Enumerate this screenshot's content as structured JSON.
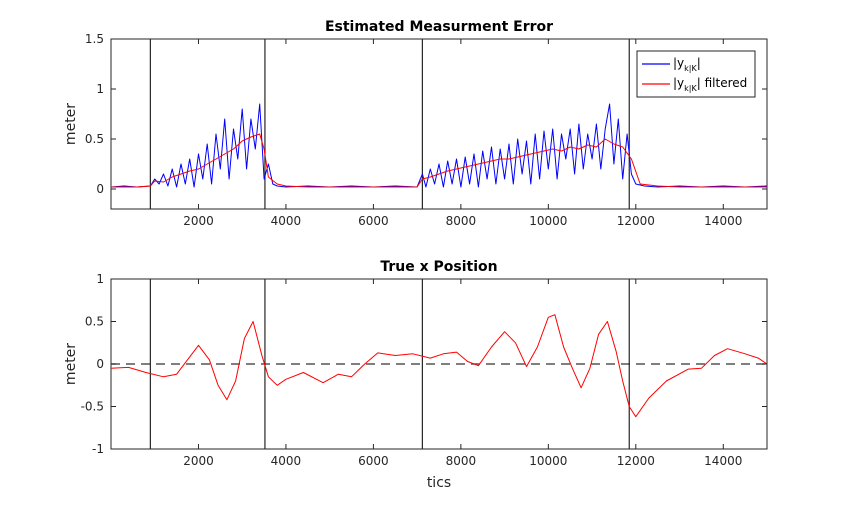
{
  "chart_data": [
    {
      "type": "line",
      "title": "Estimated Measurment Error",
      "xlabel": "",
      "ylabel": "meter",
      "xlim": [
        0,
        15000
      ],
      "ylim": [
        -0.2,
        1.5
      ],
      "xticks": [
        2000,
        4000,
        6000,
        8000,
        10000,
        12000,
        14000
      ],
      "yticks": [
        0,
        0.5,
        1,
        1.5
      ],
      "ytick_labels": [
        "0",
        "0.5",
        "1",
        "1.5"
      ],
      "vlines": [
        900,
        3520,
        7120,
        11850
      ],
      "legend": {
        "position": "top-right",
        "entries": [
          {
            "main": "|y",
            "sub": "k|K",
            "tail": "|",
            "color": "#0000ff"
          },
          {
            "main": "|y",
            "sub": "k|K",
            "tail": "| filtered",
            "color": "#ff0000"
          }
        ]
      },
      "series": [
        {
          "color": "#0000ff",
          "x": [
            0,
            300,
            600,
            900,
            1000,
            1100,
            1200,
            1300,
            1400,
            1500,
            1600,
            1700,
            1800,
            1900,
            2000,
            2100,
            2200,
            2300,
            2400,
            2500,
            2600,
            2700,
            2800,
            2900,
            3000,
            3100,
            3200,
            3300,
            3400,
            3500,
            3600,
            3700,
            3800,
            4000,
            4500,
            5000,
            5500,
            6000,
            6500,
            7000,
            7120,
            7200,
            7300,
            7400,
            7500,
            7600,
            7700,
            7800,
            7900,
            8000,
            8100,
            8200,
            8300,
            8400,
            8500,
            8600,
            8700,
            8800,
            8900,
            9000,
            9100,
            9200,
            9300,
            9400,
            9500,
            9600,
            9700,
            9800,
            9900,
            10000,
            10100,
            10200,
            10300,
            10400,
            10500,
            10600,
            10700,
            10800,
            10900,
            11000,
            11100,
            11200,
            11300,
            11400,
            11500,
            11600,
            11700,
            11800,
            11900,
            12000,
            12200,
            12500,
            13000,
            13500,
            14000,
            14500,
            15000
          ],
          "y": [
            0.02,
            0.03,
            0.02,
            0.03,
            0.1,
            0.05,
            0.15,
            0.03,
            0.2,
            0.02,
            0.25,
            0.05,
            0.3,
            0.02,
            0.35,
            0.1,
            0.45,
            0.05,
            0.55,
            0.2,
            0.7,
            0.1,
            0.6,
            0.3,
            0.8,
            0.2,
            0.7,
            0.4,
            0.85,
            0.1,
            0.25,
            0.05,
            0.03,
            0.02,
            0.03,
            0.02,
            0.03,
            0.02,
            0.03,
            0.02,
            0.15,
            0.02,
            0.2,
            0.05,
            0.25,
            0.02,
            0.28,
            0.05,
            0.3,
            0.02,
            0.32,
            0.05,
            0.35,
            0.02,
            0.38,
            0.1,
            0.42,
            0.05,
            0.4,
            0.1,
            0.45,
            0.05,
            0.5,
            0.15,
            0.48,
            0.05,
            0.55,
            0.1,
            0.58,
            0.2,
            0.6,
            0.1,
            0.55,
            0.3,
            0.6,
            0.15,
            0.65,
            0.2,
            0.55,
            0.3,
            0.65,
            0.2,
            0.6,
            0.85,
            0.25,
            0.7,
            0.1,
            0.55,
            0.15,
            0.05,
            0.03,
            0.02,
            0.03,
            0.02,
            0.03,
            0.02,
            0.03
          ]
        },
        {
          "color": "#ff0000",
          "x": [
            0,
            300,
            600,
            900,
            1000,
            1200,
            1400,
            1600,
            1800,
            2000,
            2200,
            2400,
            2600,
            2800,
            3000,
            3200,
            3400,
            3500,
            3600,
            3800,
            4000,
            4500,
            5000,
            5500,
            6000,
            6500,
            7000,
            7120,
            7300,
            7500,
            7700,
            7900,
            8100,
            8300,
            8500,
            8700,
            8900,
            9100,
            9300,
            9500,
            9700,
            9900,
            10100,
            10300,
            10500,
            10700,
            10900,
            11100,
            11300,
            11500,
            11700,
            11900,
            12100,
            12500,
            13000,
            13500,
            14000,
            14500,
            15000
          ],
          "y": [
            0.02,
            0.02,
            0.02,
            0.03,
            0.08,
            0.07,
            0.12,
            0.15,
            0.18,
            0.2,
            0.25,
            0.3,
            0.35,
            0.4,
            0.48,
            0.52,
            0.55,
            0.4,
            0.12,
            0.05,
            0.03,
            0.02,
            0.02,
            0.02,
            0.02,
            0.02,
            0.02,
            0.1,
            0.12,
            0.15,
            0.18,
            0.2,
            0.22,
            0.24,
            0.26,
            0.28,
            0.3,
            0.3,
            0.32,
            0.34,
            0.36,
            0.38,
            0.4,
            0.38,
            0.42,
            0.4,
            0.44,
            0.42,
            0.5,
            0.45,
            0.42,
            0.3,
            0.05,
            0.03,
            0.02,
            0.02,
            0.02,
            0.02,
            0.02
          ]
        }
      ]
    },
    {
      "type": "line",
      "title": "True x Position",
      "xlabel": "tics",
      "ylabel": "meter",
      "xlim": [
        0,
        15000
      ],
      "ylim": [
        -1,
        1
      ],
      "xticks": [
        2000,
        4000,
        6000,
        8000,
        10000,
        12000,
        14000
      ],
      "yticks": [
        -1,
        -0.5,
        0,
        0.5,
        1
      ],
      "ytick_labels": [
        "-1",
        "-0.5",
        "0",
        "0.5",
        "1"
      ],
      "vlines": [
        900,
        3520,
        7120,
        11850
      ],
      "hline": 0,
      "series": [
        {
          "color": "#ff0000",
          "x": [
            0,
            400,
            800,
            1200,
            1500,
            1750,
            2000,
            2250,
            2450,
            2650,
            2850,
            3050,
            3250,
            3450,
            3600,
            3800,
            4000,
            4400,
            4850,
            5200,
            5500,
            5800,
            6100,
            6500,
            6900,
            7300,
            7600,
            7900,
            8150,
            8400,
            8700,
            9000,
            9250,
            9500,
            9750,
            10000,
            10150,
            10350,
            10550,
            10750,
            10950,
            11150,
            11350,
            11550,
            11700,
            11850,
            12000,
            12300,
            12700,
            13200,
            13500,
            13800,
            14100,
            14500,
            14800,
            15000
          ],
          "y": [
            -0.05,
            -0.04,
            -0.1,
            -0.15,
            -0.12,
            0.05,
            0.22,
            0.05,
            -0.25,
            -0.42,
            -0.2,
            0.3,
            0.5,
            0.1,
            -0.15,
            -0.25,
            -0.18,
            -0.1,
            -0.22,
            -0.12,
            -0.15,
            0.0,
            0.13,
            0.1,
            0.12,
            0.07,
            0.12,
            0.14,
            0.03,
            -0.02,
            0.2,
            0.38,
            0.25,
            -0.03,
            0.2,
            0.55,
            0.58,
            0.2,
            -0.05,
            -0.28,
            -0.05,
            0.35,
            0.5,
            0.15,
            -0.2,
            -0.5,
            -0.62,
            -0.4,
            -0.2,
            -0.06,
            -0.05,
            0.1,
            0.18,
            0.12,
            0.07,
            0.0
          ]
        }
      ]
    }
  ]
}
